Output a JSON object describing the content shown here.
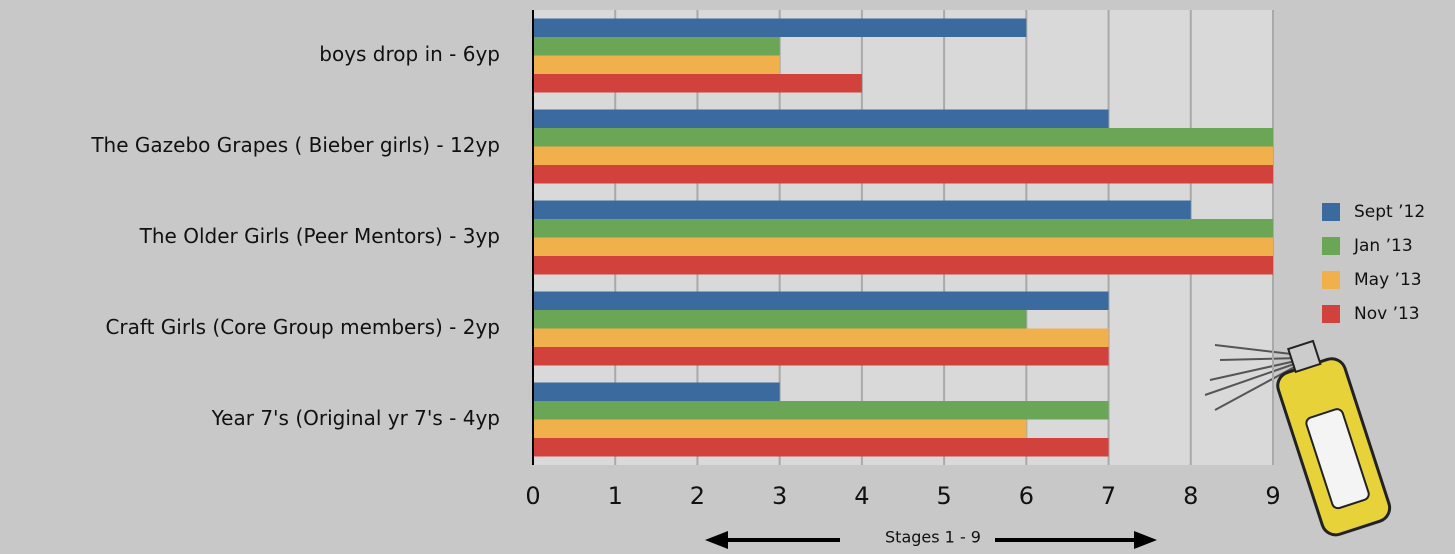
{
  "chart_data": {
    "type": "bar",
    "orientation": "horizontal",
    "categories": [
      "boys drop in - 6yp",
      "The Gazebo Grapes ( Bieber girls) - 12yp",
      "The Older Girls (Peer Mentors) - 3yp",
      "Craft Girls (Core Group members) -  2yp",
      "Year 7's (Original yr 7's - 4yp"
    ],
    "series": [
      {
        "name": "Sept ’12",
        "color": "#3b6a9f",
        "values": [
          6,
          7,
          8,
          7,
          3
        ]
      },
      {
        "name": "Jan ’13",
        "color": "#6ba657",
        "values": [
          3,
          9,
          9,
          6,
          7
        ]
      },
      {
        "name": "May ’13",
        "color": "#f0b04b",
        "values": [
          3,
          9,
          9,
          7,
          6
        ]
      },
      {
        "name": "Nov ’13",
        "color": "#d1423d",
        "values": [
          4,
          9,
          9,
          7,
          7
        ]
      }
    ],
    "xlabel": "Stages 1 - 9",
    "xlim": [
      0,
      9
    ],
    "xticks": [
      0,
      1,
      2,
      3,
      4,
      5,
      6,
      7,
      8,
      9
    ],
    "grid": true,
    "legend": "right"
  }
}
